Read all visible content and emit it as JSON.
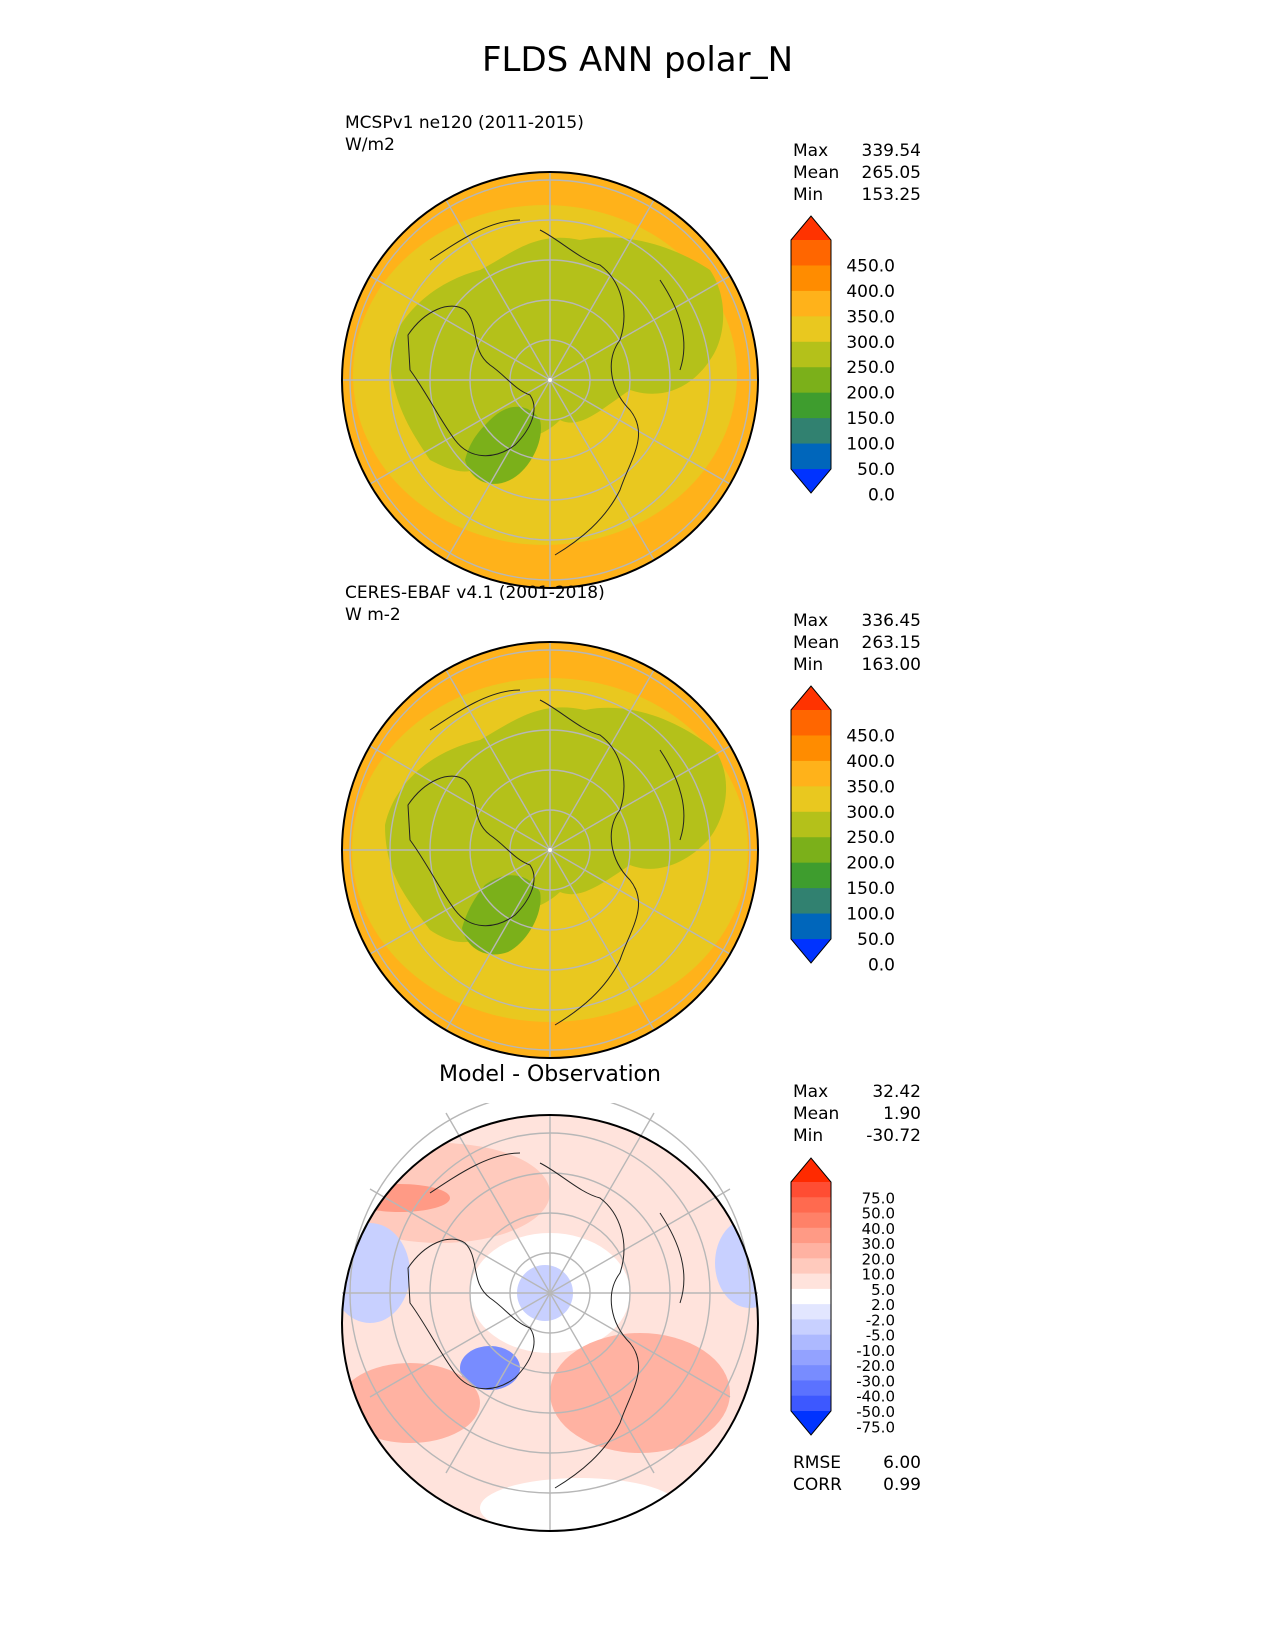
{
  "title": "FLDS ANN polar_N",
  "panels": [
    {
      "kind": "model",
      "label_line1": "MCSPv1 ne120 (2011-2015)",
      "label_line2": "W/m2",
      "stats": [
        {
          "name": "Max",
          "value": "339.54"
        },
        {
          "name": "Mean",
          "value": "265.05"
        },
        {
          "name": "Min",
          "value": "153.25"
        }
      ],
      "colorbar": {
        "labels": [
          "450.0",
          "400.0",
          "350.0",
          "300.0",
          "250.0",
          "200.0",
          "150.0",
          "100.0",
          "50.0",
          "0.0"
        ],
        "colors_top_to_bottom": [
          "#ff3300",
          "#ff6600",
          "#ff8c00",
          "#ffb21a",
          "#e9c81f",
          "#b4c11a",
          "#7bb01a",
          "#3e9d2e",
          "#318170",
          "#0066bb",
          "#0033ff"
        ]
      }
    },
    {
      "kind": "observation",
      "label_line1": "CERES-EBAF v4.1 (2001-2018)",
      "label_line2": "W m-2",
      "stats": [
        {
          "name": "Max",
          "value": "336.45"
        },
        {
          "name": "Mean",
          "value": "263.15"
        },
        {
          "name": "Min",
          "value": "163.00"
        }
      ],
      "colorbar": {
        "labels": [
          "450.0",
          "400.0",
          "350.0",
          "300.0",
          "250.0",
          "200.0",
          "150.0",
          "100.0",
          "50.0",
          "0.0"
        ],
        "colors_top_to_bottom": [
          "#ff3300",
          "#ff6600",
          "#ff8c00",
          "#ffb21a",
          "#e9c81f",
          "#b4c11a",
          "#7bb01a",
          "#3e9d2e",
          "#318170",
          "#0066bb",
          "#0033ff"
        ]
      }
    },
    {
      "kind": "difference",
      "title": "Model - Observation",
      "stats": [
        {
          "name": "Max",
          "value": "32.42"
        },
        {
          "name": "Mean",
          "value": "1.90"
        },
        {
          "name": "Min",
          "value": "-30.72"
        }
      ],
      "colorbar": {
        "labels": [
          "75.0",
          "50.0",
          "40.0",
          "30.0",
          "20.0",
          "10.0",
          "5.0",
          "2.0",
          "-2.0",
          "-5.0",
          "-10.0",
          "-20.0",
          "-30.0",
          "-40.0",
          "-50.0",
          "-75.0"
        ],
        "colors_top_to_bottom": [
          "#ff2a00",
          "#ff4d33",
          "#ff6a4f",
          "#ff8168",
          "#ff9a85",
          "#ffb2a2",
          "#ffcabd",
          "#ffe3dc",
          "#ffffff",
          "#e2e6ff",
          "#c8d0ff",
          "#adb9ff",
          "#93a2ff",
          "#788cff",
          "#5b72ff",
          "#3d58ff",
          "#0033ff"
        ]
      },
      "metrics": [
        {
          "name": "RMSE",
          "value": "6.00"
        },
        {
          "name": "CORR",
          "value": "0.99"
        }
      ]
    }
  ]
}
